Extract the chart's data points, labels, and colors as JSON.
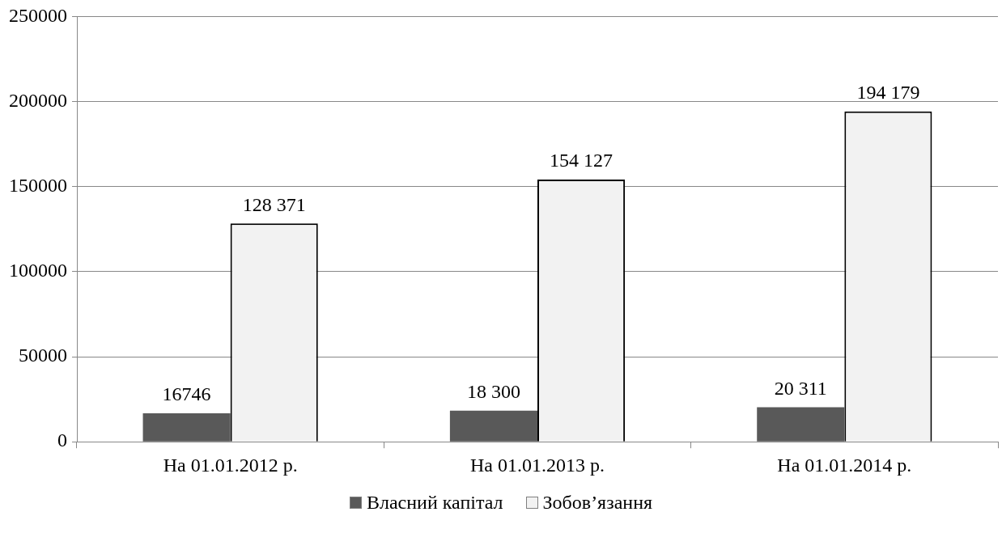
{
  "chart_data": {
    "type": "bar",
    "categories": [
      "На 01.01.2012 р.",
      "На 01.01.2013 р.",
      "На 01.01.2014 р."
    ],
    "series": [
      {
        "name": "Власний капітал",
        "color": "#595959",
        "values": [
          16746,
          18300,
          20311
        ],
        "value_labels": [
          "16746",
          "18 300",
          "20 311"
        ]
      },
      {
        "name": "Зобов’язання",
        "color": "#f2f2f2",
        "values": [
          128371,
          154127,
          194179
        ],
        "value_labels": [
          "128 371",
          "154 127",
          "194 179"
        ]
      }
    ],
    "ylim": [
      0,
      250000
    ],
    "yticks": [
      0,
      50000,
      100000,
      150000,
      200000,
      250000
    ],
    "grid": "y",
    "legend": "bottom"
  }
}
